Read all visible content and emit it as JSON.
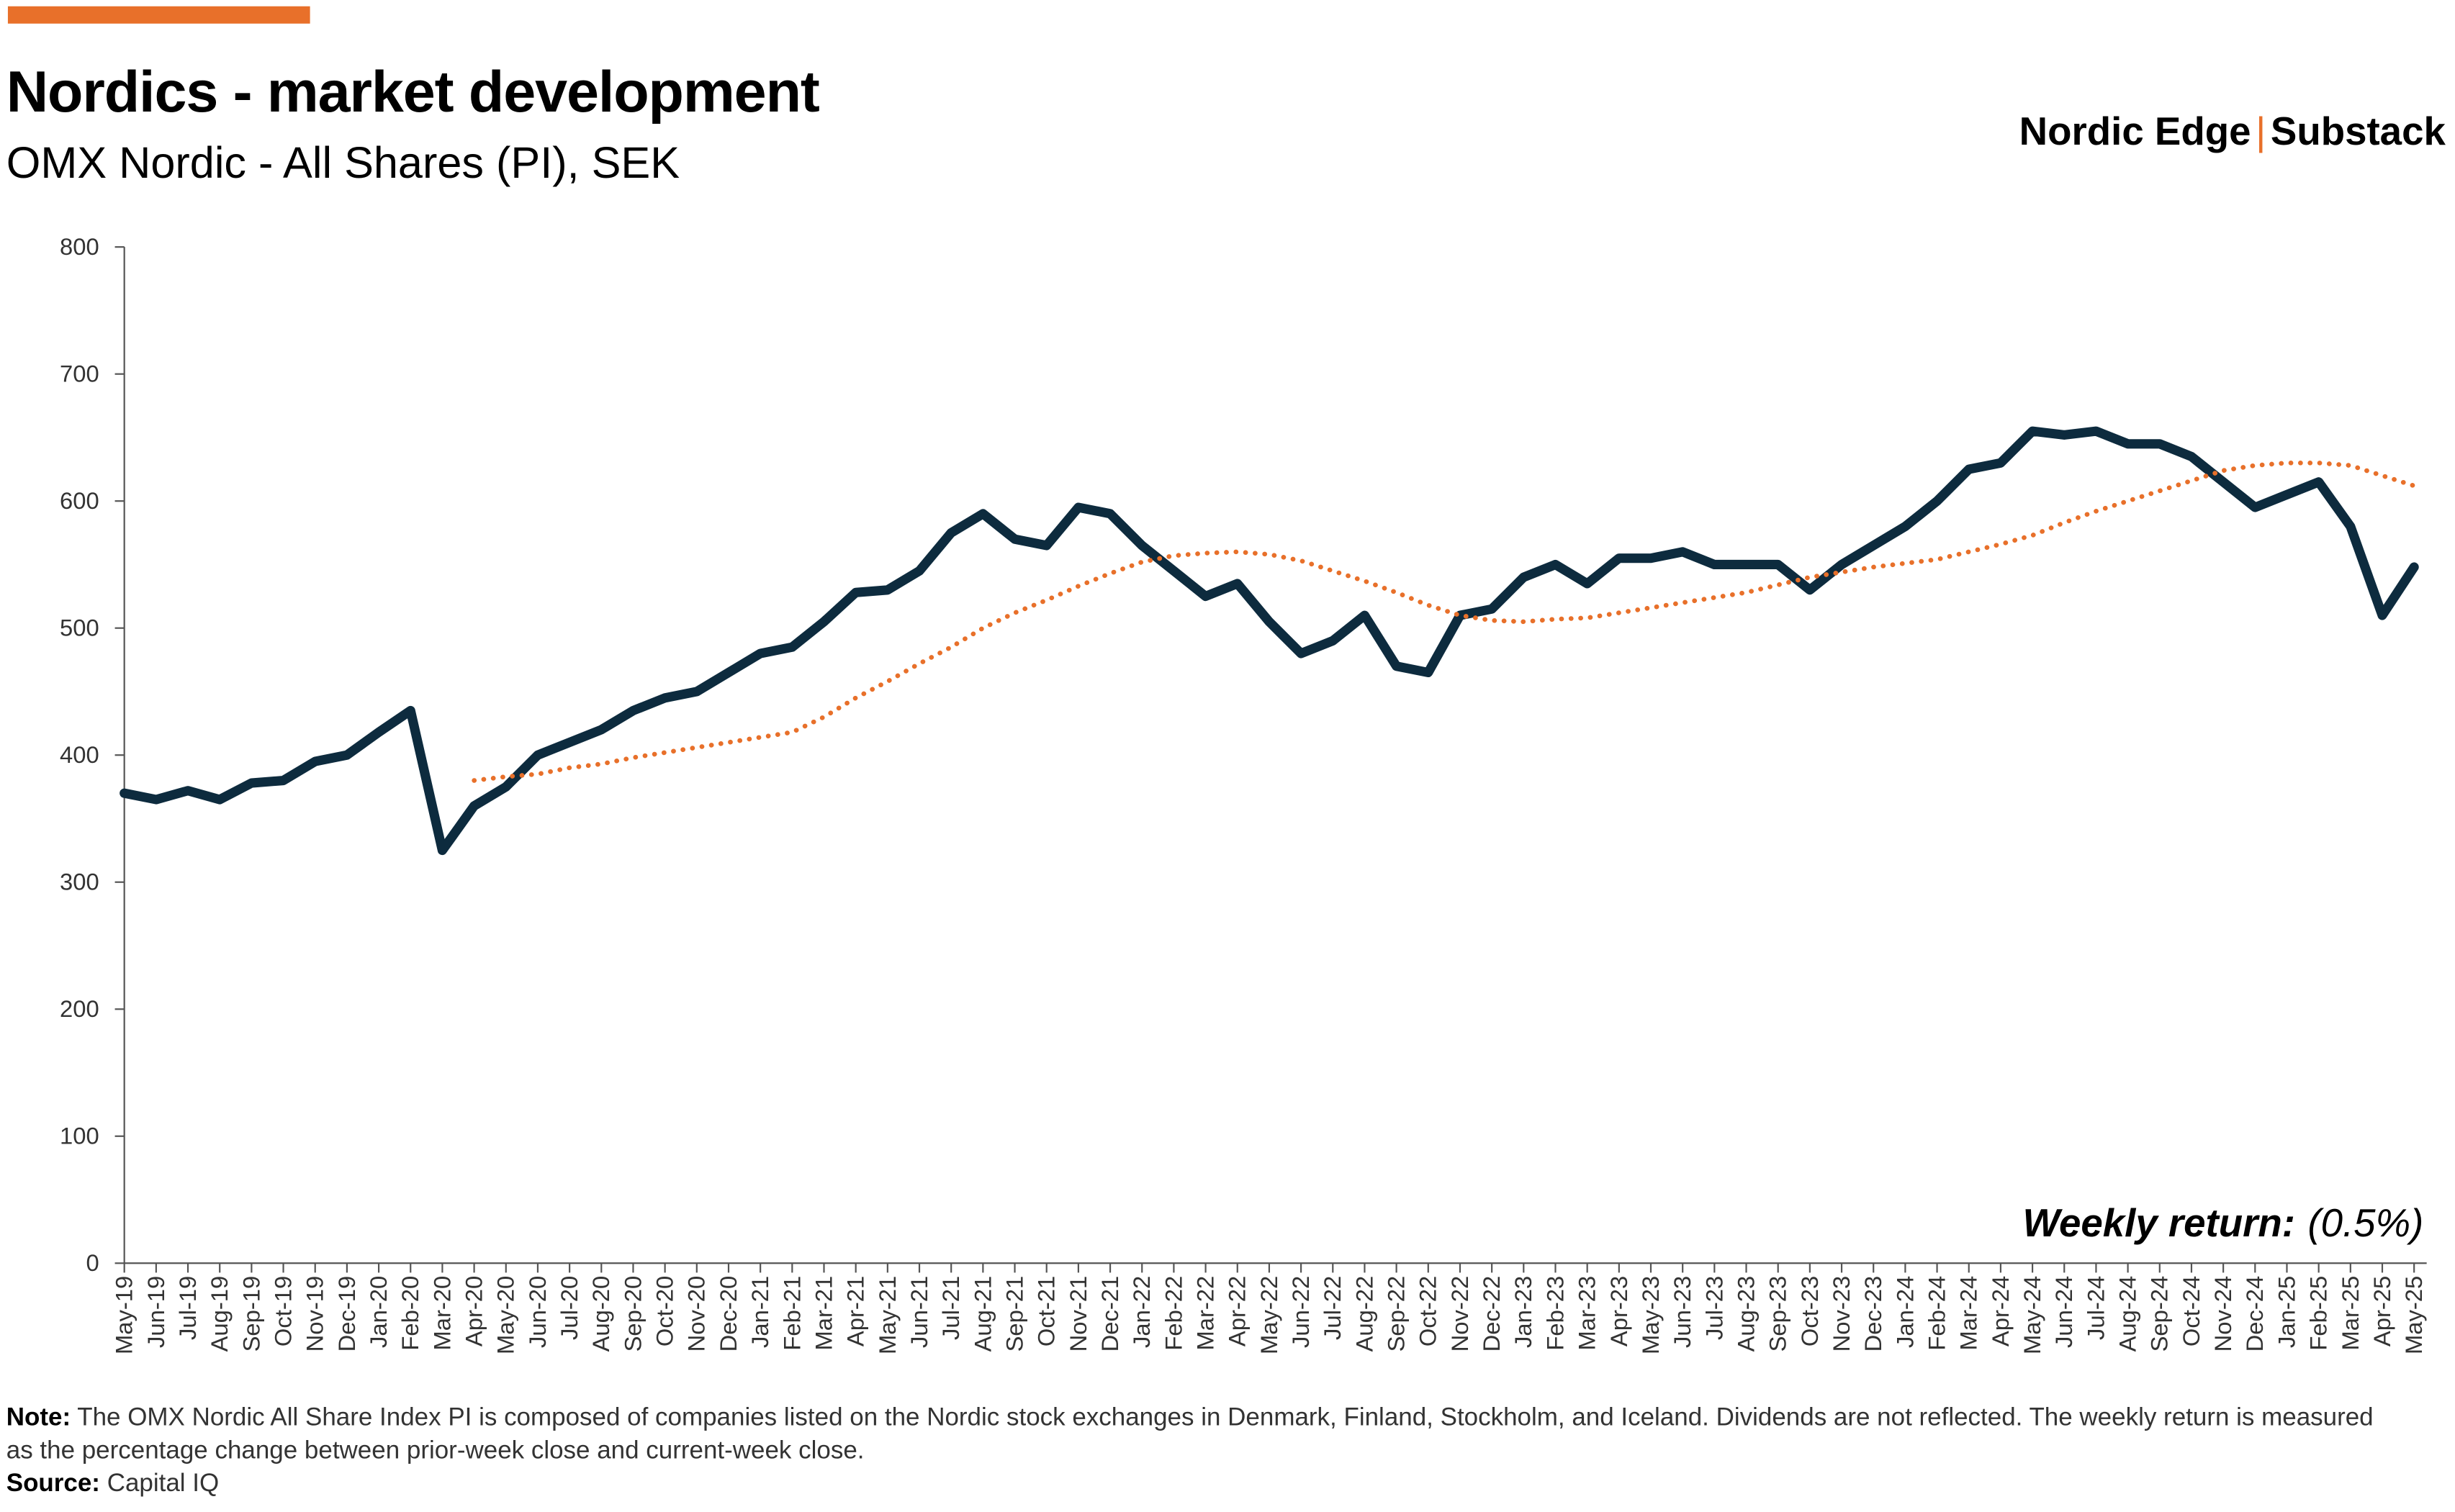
{
  "title": "Nordics - market development",
  "subtitle": "OMX Nordic - All Shares (PI), SEK",
  "brand": {
    "left": "Nordic Edge",
    "separator": "|",
    "right": "Substack"
  },
  "chart_data": {
    "type": "line",
    "categories": [
      "May-19",
      "Jun-19",
      "Jul-19",
      "Aug-19",
      "Sep-19",
      "Oct-19",
      "Nov-19",
      "Dec-19",
      "Jan-20",
      "Feb-20",
      "Mar-20",
      "Apr-20",
      "May-20",
      "Jun-20",
      "Jul-20",
      "Aug-20",
      "Sep-20",
      "Oct-20",
      "Nov-20",
      "Dec-20",
      "Jan-21",
      "Feb-21",
      "Mar-21",
      "Apr-21",
      "May-21",
      "Jun-21",
      "Jul-21",
      "Aug-21",
      "Sep-21",
      "Oct-21",
      "Nov-21",
      "Dec-21",
      "Jan-22",
      "Feb-22",
      "Mar-22",
      "Apr-22",
      "May-22",
      "Jun-22",
      "Jul-22",
      "Aug-22",
      "Sep-22",
      "Oct-22",
      "Nov-22",
      "Dec-22",
      "Jan-23",
      "Feb-23",
      "Mar-23",
      "Apr-23",
      "May-23",
      "Jun-23",
      "Jul-23",
      "Aug-23",
      "Sep-23",
      "Oct-23",
      "Nov-23",
      "Dec-23",
      "Jan-24",
      "Feb-24",
      "Mar-24",
      "Apr-24",
      "May-24",
      "Jun-24",
      "Jul-24",
      "Aug-24",
      "Sep-24",
      "Oct-24",
      "Nov-24",
      "Dec-24",
      "Jan-25",
      "Feb-25",
      "Mar-25",
      "Apr-25",
      "May-25"
    ],
    "series": [
      {
        "color": "#0d2b3e",
        "style": "solid",
        "values": [
          370,
          365,
          372,
          365,
          378,
          380,
          395,
          400,
          418,
          435,
          325,
          360,
          375,
          400,
          410,
          420,
          435,
          445,
          450,
          465,
          480,
          485,
          505,
          528,
          530,
          545,
          575,
          590,
          570,
          565,
          595,
          590,
          565,
          545,
          525,
          535,
          505,
          480,
          490,
          510,
          470,
          465,
          510,
          515,
          540,
          550,
          535,
          555,
          555,
          560,
          550,
          550,
          550,
          530,
          550,
          565,
          580,
          600,
          625,
          630,
          655,
          652,
          655,
          645,
          645,
          635,
          615,
          595,
          605,
          615,
          580,
          510,
          548
        ]
      },
      {
        "color": "#e8702a",
        "style": "dotted",
        "values": [
          null,
          null,
          null,
          null,
          null,
          null,
          null,
          null,
          null,
          null,
          null,
          380,
          383,
          385,
          390,
          393,
          398,
          402,
          406,
          410,
          414,
          418,
          430,
          445,
          458,
          472,
          485,
          500,
          512,
          522,
          533,
          543,
          552,
          557,
          559,
          560,
          558,
          553,
          545,
          537,
          528,
          518,
          510,
          506,
          505,
          507,
          508,
          512,
          516,
          520,
          524,
          528,
          534,
          540,
          544,
          548,
          551,
          554,
          560,
          566,
          573,
          583,
          592,
          600,
          608,
          616,
          624,
          628,
          630,
          630,
          628,
          620,
          612
        ]
      }
    ],
    "ylim": [
      0,
      800
    ],
    "yticks": [
      0,
      100,
      200,
      300,
      400,
      500,
      600,
      700,
      800
    ],
    "grid": false,
    "annotation": {
      "label": "Weekly return:",
      "value": "(0.5%)"
    }
  },
  "note": {
    "label": "Note:",
    "text": "The OMX Nordic All Share Index PI is composed of companies listed on the Nordic stock exchanges in Denmark, Finland, Stockholm, and Iceland. Dividends are not reflected. The weekly return is measured as the percentage change between prior-week close and current-week close."
  },
  "source": {
    "label": "Source:",
    "text": "Capital IQ"
  }
}
